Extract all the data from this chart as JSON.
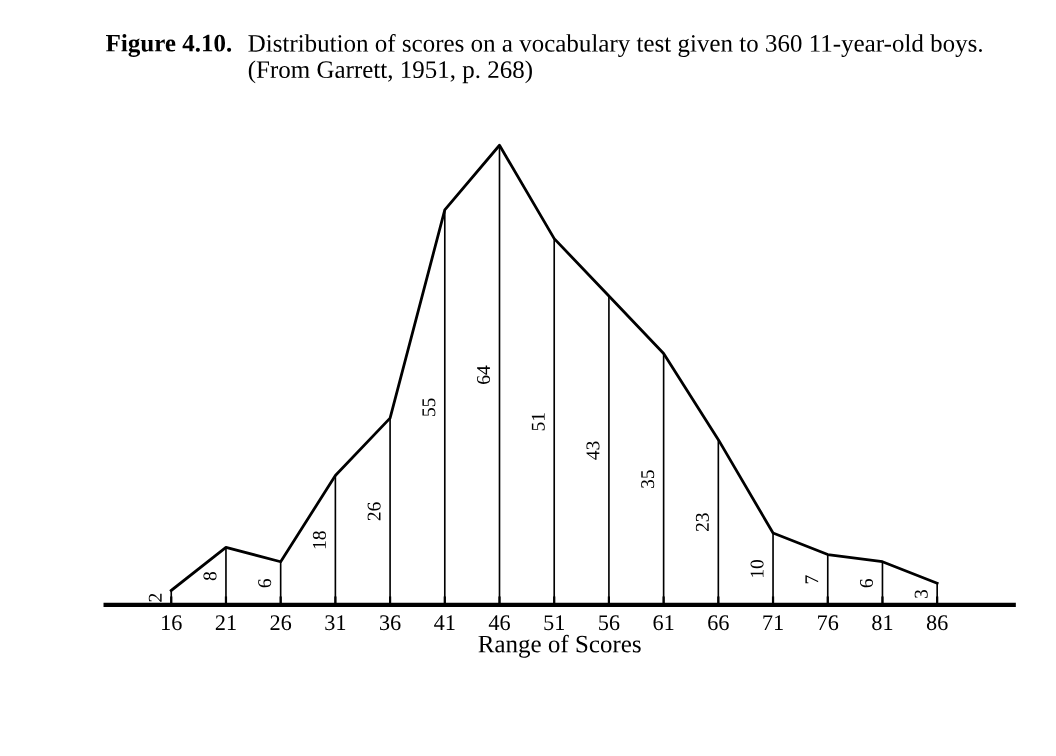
{
  "chart_data": {
    "type": "line",
    "title": "Figure 4.10.",
    "subtitle": "Distribution of scores on a vocabulary test given to 360 11-year-old boys.   (From Garrett, 1951, p. 268)",
    "xlabel": "Range of Scores",
    "x": [
      16,
      21,
      26,
      31,
      36,
      41,
      46,
      51,
      56,
      61,
      66,
      71,
      76,
      81,
      86
    ],
    "series": [
      {
        "color": "#000000",
        "values": [
          2,
          8,
          6,
          18,
          26,
          55,
          64,
          51,
          43,
          35,
          23,
          10,
          7,
          6,
          3
        ]
      },
      {
        "type": "bar",
        "color": "#000000",
        "values": [
          2,
          8,
          6,
          18,
          26,
          55,
          64,
          51,
          43,
          35,
          23,
          10,
          7,
          6,
          3
        ],
        "value_labels": [
          "2",
          "8",
          "6",
          "18",
          "26",
          "55",
          "64",
          "51",
          "43",
          "35",
          "23",
          "10",
          "7",
          "6",
          "3"
        ]
      }
    ],
    "xlim": [
      10,
      93
    ],
    "xticks": [
      16,
      21,
      26,
      31,
      36,
      41,
      46,
      51,
      56,
      61,
      66,
      71,
      76,
      81,
      86
    ],
    "marker": "none",
    "line_style": "solid",
    "tick_labels": "x",
    "grid": false,
    "legend": false
  }
}
